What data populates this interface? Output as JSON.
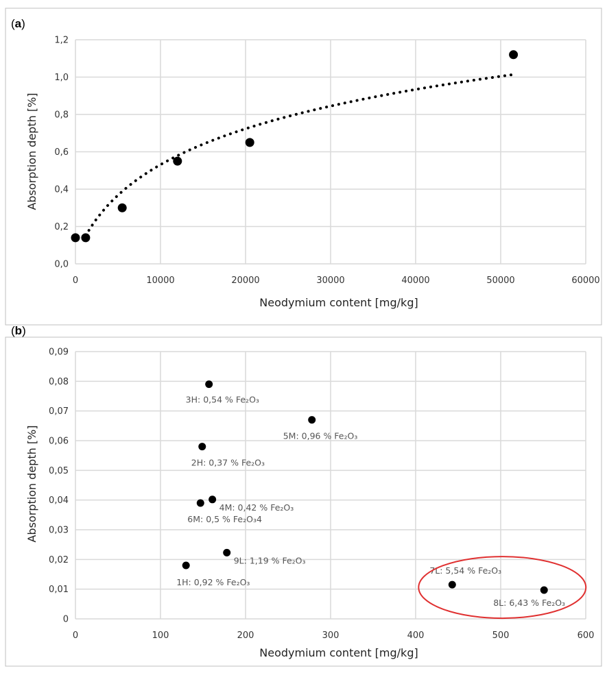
{
  "chart_data": [
    {
      "panel_label": "a",
      "type": "scatter",
      "xlabel": "Neodymium content [mg/kg]",
      "ylabel": "Absorption depth [%]",
      "xlim": [
        0,
        60000
      ],
      "ylim": [
        0,
        1.2
      ],
      "x_ticks": [
        "0",
        "10000",
        "20000",
        "30000",
        "40000",
        "50000",
        "60000"
      ],
      "y_ticks": [
        "0,0",
        "0,2",
        "0,4",
        "0,6",
        "0,8",
        "1,0",
        "1,2"
      ],
      "grid": true,
      "points": [
        {
          "x": 0,
          "y": 0.14
        },
        {
          "x": 1200,
          "y": 0.14
        },
        {
          "x": 5500,
          "y": 0.3
        },
        {
          "x": 12000,
          "y": 0.55
        },
        {
          "x": 20500,
          "y": 0.65
        },
        {
          "x": 51500,
          "y": 1.12
        }
      ],
      "trendline": {
        "style": "dotted",
        "x_start": 1200,
        "x_end": 51500
      }
    },
    {
      "panel_label": "b",
      "type": "scatter",
      "xlabel": "Neodymium content [mg/kg]",
      "ylabel": "Absorption depth [%]",
      "xlim": [
        0,
        600
      ],
      "ylim": [
        0,
        0.09
      ],
      "x_ticks": [
        "0",
        "100",
        "200",
        "300",
        "400",
        "500",
        "600"
      ],
      "y_ticks": [
        "0",
        "0,01",
        "0,02",
        "0,03",
        "0,04",
        "0,05",
        "0,06",
        "0,07",
        "0,08",
        "0,09"
      ],
      "grid": true,
      "points": [
        {
          "x": 157,
          "y": 0.079,
          "label": "3H: 0,54 % Fe₂O₃"
        },
        {
          "x": 278,
          "y": 0.067,
          "label": "5M: 0,96 % Fe₂O₃"
        },
        {
          "x": 149,
          "y": 0.058,
          "label": "2H: 0,37 % Fe₂O₃"
        },
        {
          "x": 161,
          "y": 0.0402,
          "label": "4M: 0,42 % Fe₂O₃"
        },
        {
          "x": 147,
          "y": 0.039,
          "label": "6M: 0,5 % Fe₂O₃4"
        },
        {
          "x": 178,
          "y": 0.0223,
          "label": "9L: 1,19 % Fe₂O₃"
        },
        {
          "x": 130,
          "y": 0.018,
          "label": "1H: 0,92 % Fe₂O₃"
        },
        {
          "x": 443,
          "y": 0.0115,
          "label": "7L: 5,54 % Fe₂O₃"
        },
        {
          "x": 551,
          "y": 0.0097,
          "label": "8L: 6,43 % Fe₂O₃"
        }
      ],
      "highlight": {
        "shape": "ellipse",
        "color": "#e03030",
        "encloses": [
          "7L",
          "8L"
        ]
      }
    }
  ]
}
